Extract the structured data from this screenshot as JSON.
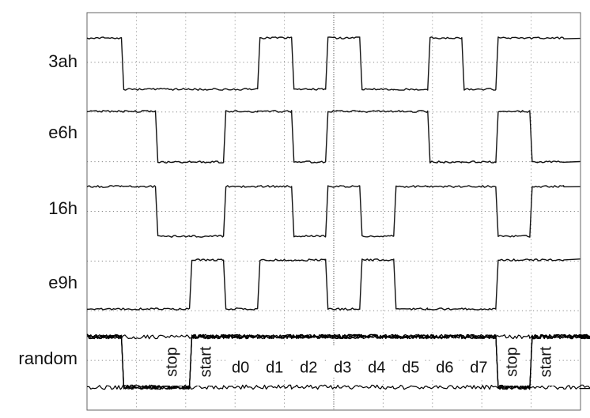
{
  "diagram": {
    "rows": [
      {
        "label": "3ah",
        "bits": [
          1,
          0,
          0,
          0,
          0,
          1,
          0,
          1,
          0,
          0,
          1,
          0,
          1,
          1
        ]
      },
      {
        "label": "e6h",
        "bits": [
          1,
          1,
          0,
          0,
          1,
          1,
          0,
          1,
          1,
          1,
          0,
          0,
          1,
          0
        ]
      },
      {
        "label": "16h",
        "bits": [
          1,
          1,
          0,
          0,
          1,
          1,
          0,
          1,
          0,
          1,
          1,
          1,
          0,
          1
        ]
      },
      {
        "label": "e9h",
        "bits": [
          0,
          0,
          0,
          1,
          0,
          1,
          1,
          0,
          1,
          0,
          0,
          0,
          1,
          1
        ]
      }
    ],
    "random_label": "random",
    "random_segments": [
      {
        "label": "stop",
        "rotated": true
      },
      {
        "label": "start",
        "rotated": true
      },
      {
        "label": "d0",
        "rotated": false
      },
      {
        "label": "d1",
        "rotated": false
      },
      {
        "label": "d2",
        "rotated": false
      },
      {
        "label": "d3",
        "rotated": false
      },
      {
        "label": "d4",
        "rotated": false
      },
      {
        "label": "d5",
        "rotated": false
      },
      {
        "label": "d6",
        "rotated": false
      },
      {
        "label": "d7",
        "rotated": false
      },
      {
        "label": "stop",
        "rotated": true
      },
      {
        "label": "start",
        "rotated": true
      }
    ]
  }
}
